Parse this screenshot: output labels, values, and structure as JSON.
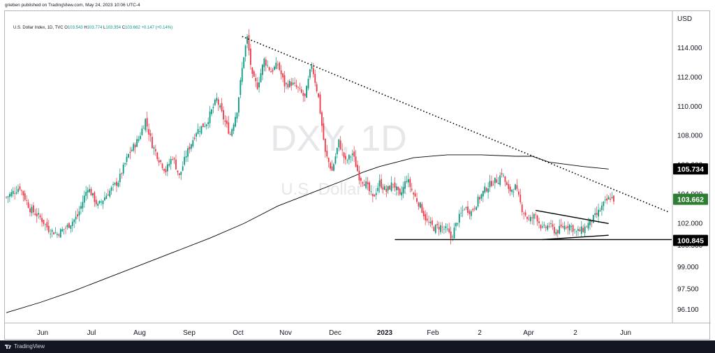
{
  "header": {
    "publish_text": "grieben published on TradingView.com, May 24, 2023 10:06 UTC-4",
    "legend_name": "U.S. Dollar Index, 1D, TVC",
    "ohlc": {
      "open_label": "O",
      "open": "103.543",
      "high_label": "H",
      "high": "103.774",
      "low_label": "L",
      "low": "103.354",
      "close_label": "C",
      "close": "103.662",
      "change": "+0.147 (+0.14%)"
    }
  },
  "footer": {
    "brand": "TradingView"
  },
  "watermark": {
    "symbol": "DXY, 1D",
    "name": "U.S. Dollar Index"
  },
  "colors": {
    "up": "#089981",
    "down": "#f23645",
    "ma": "#000000",
    "badge_dark": "#000000",
    "badge_green": "#2e7d32",
    "footer_bg": "#131722"
  },
  "chart_data": {
    "type": "candlestick",
    "currency_label": "USD",
    "y_ticks": [
      96.1,
      97.5,
      99.0,
      100.5,
      102.0,
      104.0,
      106.0,
      108.0,
      110.0,
      112.0,
      114.0
    ],
    "y_tick_labels": [
      "96.100",
      "97.500",
      "99.000",
      "100.500",
      "102.000",
      "104.000",
      "106.000",
      "108.000",
      "110.000",
      "112.000",
      "114.000"
    ],
    "x_labels": [
      "Jun",
      "Jul",
      "Aug",
      "Sep",
      "Oct",
      "Nov",
      "Dec",
      "2023",
      "Feb",
      "2",
      "Apr",
      "2",
      "Jun"
    ],
    "price_badges": [
      {
        "label": "105.734",
        "value": 105.734,
        "style": "dark"
      },
      {
        "label": "103.662",
        "value": 103.662,
        "style": "green"
      },
      {
        "label": "100.845",
        "value": 100.845,
        "style": "dark"
      }
    ],
    "close_path": [
      [
        0,
        103.8
      ],
      [
        8,
        104.5
      ],
      [
        14,
        103.0
      ],
      [
        20,
        102.4
      ],
      [
        25,
        101.6
      ],
      [
        30,
        101.3
      ],
      [
        36,
        101.8
      ],
      [
        42,
        102.5
      ],
      [
        48,
        104.5
      ],
      [
        54,
        103.2
      ],
      [
        60,
        104.1
      ],
      [
        66,
        104.9
      ],
      [
        72,
        106.7
      ],
      [
        78,
        107.8
      ],
      [
        82,
        109.1
      ],
      [
        86,
        107.4
      ],
      [
        90,
        106.4
      ],
      [
        94,
        105.6
      ],
      [
        98,
        106.6
      ],
      [
        102,
        105.2
      ],
      [
        106,
        106.7
      ],
      [
        112,
        108.3
      ],
      [
        118,
        108.9
      ],
      [
        124,
        110.5
      ],
      [
        128,
        109.2
      ],
      [
        132,
        108.1
      ],
      [
        136,
        109.8
      ],
      [
        140,
        113.5
      ],
      [
        142,
        114.7
      ],
      [
        145,
        112.0
      ],
      [
        148,
        111.4
      ],
      [
        152,
        113.2
      ],
      [
        156,
        112.4
      ],
      [
        160,
        112.9
      ],
      [
        164,
        111.5
      ],
      [
        168,
        111.6
      ],
      [
        172,
        111.2
      ],
      [
        176,
        110.6
      ],
      [
        180,
        112.9
      ],
      [
        184,
        110.6
      ],
      [
        188,
        106.8
      ],
      [
        192,
        105.6
      ],
      [
        196,
        107.6
      ],
      [
        200,
        106.2
      ],
      [
        204,
        106.8
      ],
      [
        208,
        105.2
      ],
      [
        212,
        104.7
      ],
      [
        216,
        103.7
      ],
      [
        220,
        104.8
      ],
      [
        224,
        104.2
      ],
      [
        228,
        104.8
      ],
      [
        232,
        103.8
      ],
      [
        236,
        105.1
      ],
      [
        240,
        104.0
      ],
      [
        244,
        103.2
      ],
      [
        248,
        102.1
      ],
      [
        252,
        101.7
      ],
      [
        256,
        101.8
      ],
      [
        260,
        101.5
      ],
      [
        262,
        101.0
      ],
      [
        266,
        102.2
      ],
      [
        270,
        103.1
      ],
      [
        274,
        102.8
      ],
      [
        278,
        103.6
      ],
      [
        282,
        104.3
      ],
      [
        286,
        104.8
      ],
      [
        290,
        105.0
      ],
      [
        292,
        105.5
      ],
      [
        296,
        104.2
      ],
      [
        300,
        104.5
      ],
      [
        304,
        103.0
      ],
      [
        308,
        102.2
      ],
      [
        312,
        102.6
      ],
      [
        316,
        101.6
      ],
      [
        320,
        101.9
      ],
      [
        324,
        101.4
      ],
      [
        328,
        101.8
      ],
      [
        332,
        101.9
      ],
      [
        336,
        101.4
      ],
      [
        340,
        101.6
      ],
      [
        344,
        102.1
      ],
      [
        348,
        102.6
      ],
      [
        352,
        103.3
      ],
      [
        356,
        103.8
      ],
      [
        358,
        103.66
      ]
    ],
    "ma_path": [
      [
        0,
        95.9
      ],
      [
        20,
        96.6
      ],
      [
        40,
        97.4
      ],
      [
        60,
        98.3
      ],
      [
        80,
        99.2
      ],
      [
        100,
        100.1
      ],
      [
        120,
        101.0
      ],
      [
        140,
        102.0
      ],
      [
        160,
        103.2
      ],
      [
        180,
        104.1
      ],
      [
        200,
        105.0
      ],
      [
        210,
        105.5
      ],
      [
        220,
        105.9
      ],
      [
        230,
        106.2
      ],
      [
        240,
        106.5
      ],
      [
        260,
        106.7
      ],
      [
        280,
        106.7
      ],
      [
        300,
        106.6
      ],
      [
        310,
        106.6
      ],
      [
        320,
        106.2
      ],
      [
        340,
        105.9
      ],
      [
        355,
        105.73
      ]
    ],
    "lines": [
      {
        "name": "downtrend",
        "style": "dotted",
        "from": [
          139,
          114.8
        ],
        "to": [
          390,
          102.8
        ]
      },
      {
        "name": "support",
        "style": "solid",
        "from": [
          229,
          100.9
        ],
        "to": [
          392,
          100.9
        ]
      },
      {
        "name": "wedge-upper",
        "style": "solid",
        "from": [
          312,
          102.9
        ],
        "to": [
          355,
          102.0
        ]
      },
      {
        "name": "wedge-lower",
        "style": "solid",
        "from": [
          316,
          100.9
        ],
        "to": [
          355,
          101.2
        ]
      }
    ]
  }
}
